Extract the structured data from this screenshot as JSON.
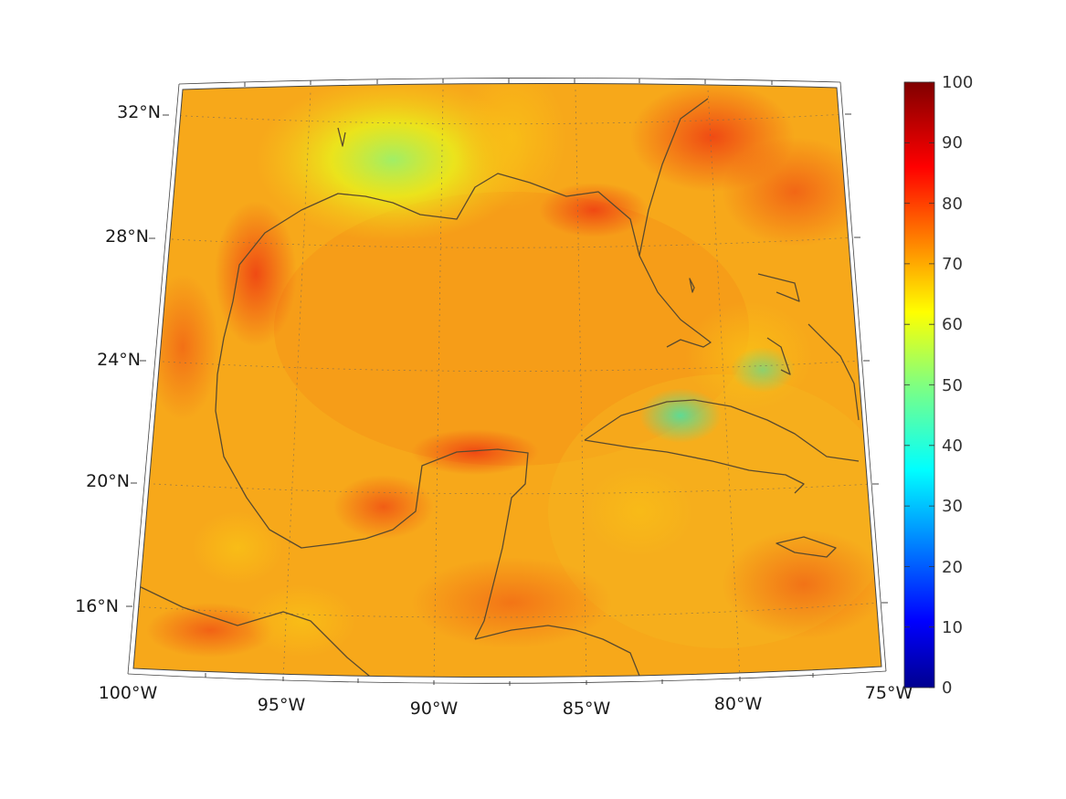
{
  "map": {
    "projection": "conic",
    "coastline_color": "#5a4a2e",
    "frame_color": "#444444",
    "grid_style": "dotted",
    "latitude_labels": [
      "16°N",
      "20°N",
      "24°N",
      "28°N",
      "32°N"
    ],
    "longitude_labels": [
      "100°W",
      "95°W",
      "90°W",
      "85°W",
      "80°W",
      "75°W"
    ]
  },
  "colorbar": {
    "colormap": "jet",
    "min": 0,
    "max": 100,
    "tick_labels": [
      "0",
      "10",
      "20",
      "30",
      "40",
      "50",
      "60",
      "70",
      "80",
      "90",
      "100"
    ],
    "colors": [
      "#00008f",
      "#0000ff",
      "#0080ff",
      "#00ffff",
      "#80ff80",
      "#ffff00",
      "#ff8000",
      "#ff0000",
      "#800000"
    ]
  }
}
